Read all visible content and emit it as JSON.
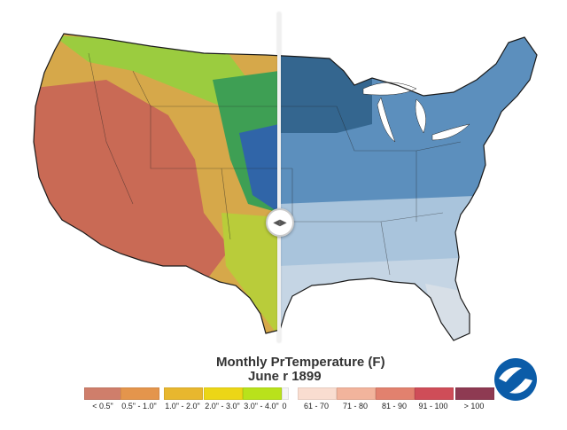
{
  "title": {
    "left_part": "Monthly Pr",
    "right_part": "Temperature (F)",
    "date_left": "June",
    "date_right": "r 1899"
  },
  "precip_legend": [
    {
      "label": "< 0.5\"",
      "color": "#cf7e6b"
    },
    {
      "label": "0.5\" - 1.0\"",
      "color": "#e4954c"
    },
    {
      "label": "1.0\" - 2.0\"",
      "color": "#e8b72e"
    },
    {
      "label": "2.0\" - 3.0\"",
      "color": "#ecd616"
    },
    {
      "label": "3.0\" - 4.0\"",
      "color": "#b9e21b"
    }
  ],
  "temp_legend": [
    {
      "label": "0",
      "color": "#f4f4f4"
    },
    {
      "label": "61 - 70",
      "color": "#f9ddd0"
    },
    {
      "label": "71 - 80",
      "color": "#f2b49c"
    },
    {
      "label": "81 - 90",
      "color": "#e2816e"
    },
    {
      "label": "91 - 100",
      "color": "#cf4d58"
    },
    {
      "label": "> 100",
      "color": "#8e3a52"
    }
  ],
  "map_colors": {
    "precip_dry": "#c96a55",
    "precip_mid": "#dba041",
    "precip_wet": "#4dbd4a",
    "precip_very_wet": "#3065a8",
    "temp_cool": "#34668f",
    "temp_mild": "#5c8fbd",
    "temp_warm": "#a9c4dc",
    "temp_warmest": "#d7dfe7"
  },
  "logo": "noaa-logo"
}
